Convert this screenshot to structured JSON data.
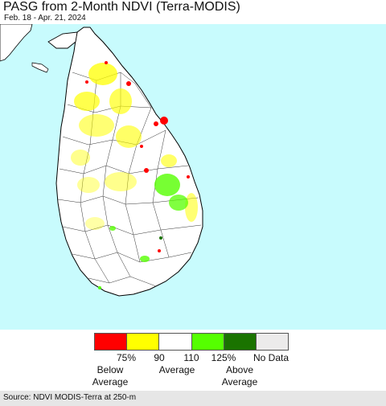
{
  "header": {
    "title": "PASG from 2-Month NDVI (Terra-MODIS)",
    "date_range": "Feb. 18 - Apr. 21, 2024"
  },
  "map": {
    "ocean_color": "#c8fbfd",
    "land_color": "#ffffff",
    "boundary_color": "#000000"
  },
  "legend": {
    "colors": [
      "#ff0000",
      "#ffff00",
      "#ffffff",
      "#55ff00",
      "#1a7300",
      "#ecebeb"
    ],
    "ticks": [
      "75%",
      "90",
      "110",
      "125%",
      "No Data"
    ],
    "labels": {
      "below_line1": "Below",
      "below_line2": "Average",
      "average": "Average",
      "above_line1": "Above",
      "above_line2": "Average"
    }
  },
  "footer": {
    "source": "Source: NDVI MODIS-Terra at 250-m"
  }
}
